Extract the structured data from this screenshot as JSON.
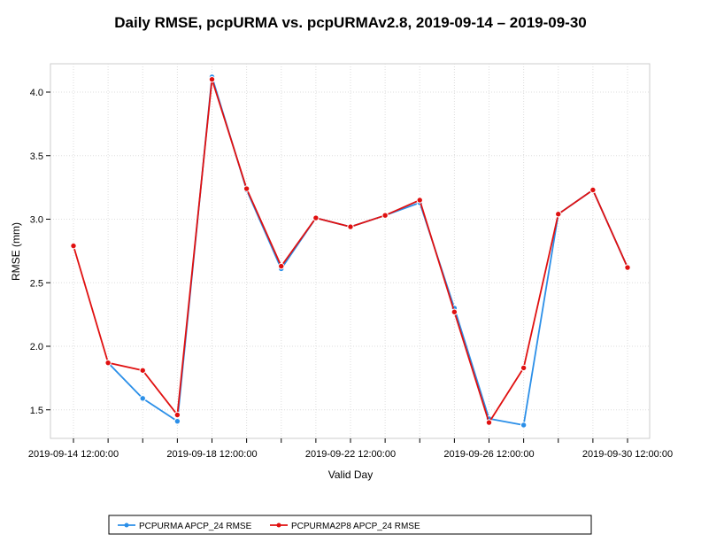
{
  "chart_data": {
    "type": "line",
    "title": "Daily RMSE, pcpURMA vs. pcpURMAv2.8, 2019-09-14 – 2019-09-30",
    "xlabel": "Valid Day",
    "ylabel": "RMSE (mm)",
    "x": [
      "2019-09-14 12:00:00",
      "2019-09-15 12:00:00",
      "2019-09-16 12:00:00",
      "2019-09-17 12:00:00",
      "2019-09-18 12:00:00",
      "2019-09-19 12:00:00",
      "2019-09-20 12:00:00",
      "2019-09-21 12:00:00",
      "2019-09-22 12:00:00",
      "2019-09-23 12:00:00",
      "2019-09-24 12:00:00",
      "2019-09-25 12:00:00",
      "2019-09-26 12:00:00",
      "2019-09-27 12:00:00",
      "2019-09-28 12:00:00",
      "2019-09-29 12:00:00",
      "2019-09-30 12:00:00"
    ],
    "xtick_labels": [
      "2019-09-14 12:00:00",
      "2019-09-18 12:00:00",
      "2019-09-22 12:00:00",
      "2019-09-26 12:00:00",
      "2019-09-30 12:00:00"
    ],
    "xtick_indices": [
      0,
      4,
      8,
      12,
      16
    ],
    "ylim": [
      1.3,
      4.25
    ],
    "yticks": [
      1.5,
      2.0,
      2.5,
      3.0,
      3.5,
      4.0
    ],
    "ytick_labels": [
      "1.5",
      "2.0",
      "2.5",
      "3.0",
      "3.5",
      "4.0"
    ],
    "grid": true,
    "legend_position": "bottom-center",
    "series": [
      {
        "name": "PCPURMA APCP_24 RMSE",
        "color": "#2b8fe8",
        "values": [
          null,
          1.87,
          1.59,
          1.41,
          4.12,
          3.23,
          2.61,
          3.01,
          2.94,
          3.03,
          3.13,
          2.3,
          1.43,
          1.38,
          3.04,
          3.23,
          2.62
        ]
      },
      {
        "name": "PCPURMA2P8 APCP_24 RMSE",
        "color": "#e01010",
        "values": [
          2.79,
          1.87,
          1.81,
          1.46,
          4.1,
          3.24,
          2.63,
          3.01,
          2.94,
          3.03,
          3.15,
          2.27,
          1.4,
          1.83,
          3.04,
          3.23,
          2.62
        ]
      }
    ]
  }
}
